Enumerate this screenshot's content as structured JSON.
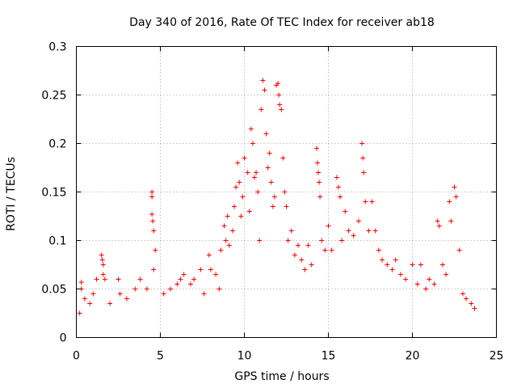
{
  "chart_data": {
    "type": "scatter",
    "title": "Day 340 of 2016, Rate Of TEC Index for receiver ab18",
    "xlabel": "GPS time / hours",
    "ylabel": "ROTI / TECUs",
    "xlim": [
      0,
      25
    ],
    "ylim": [
      0,
      0.3
    ],
    "xticks": [
      "0",
      "5",
      "10",
      "15",
      "20",
      "25"
    ],
    "yticks": [
      "0",
      "0.05",
      "0.1",
      "0.15",
      "0.2",
      "0.25",
      "0.3"
    ],
    "grid": true,
    "marker": "plus",
    "color": "#ff0000",
    "series": [
      {
        "points": [
          [
            0.2,
            0.025
          ],
          [
            0.3,
            0.05
          ],
          [
            0.3,
            0.057
          ],
          [
            0.5,
            0.04
          ],
          [
            0.8,
            0.035
          ],
          [
            1.0,
            0.045
          ],
          [
            1.2,
            0.06
          ],
          [
            1.5,
            0.085
          ],
          [
            1.55,
            0.08
          ],
          [
            1.6,
            0.075
          ],
          [
            1.6,
            0.065
          ],
          [
            1.7,
            0.06
          ],
          [
            2.0,
            0.035
          ],
          [
            2.5,
            0.06
          ],
          [
            2.6,
            0.045
          ],
          [
            3.0,
            0.04
          ],
          [
            3.5,
            0.05
          ],
          [
            3.8,
            0.06
          ],
          [
            4.2,
            0.05
          ],
          [
            4.5,
            0.15
          ],
          [
            4.5,
            0.145
          ],
          [
            4.5,
            0.127
          ],
          [
            4.55,
            0.12
          ],
          [
            4.6,
            0.11
          ],
          [
            4.7,
            0.09
          ],
          [
            4.6,
            0.07
          ],
          [
            5.2,
            0.045
          ],
          [
            5.6,
            0.05
          ],
          [
            6.0,
            0.055
          ],
          [
            6.2,
            0.06
          ],
          [
            6.4,
            0.065
          ],
          [
            6.8,
            0.055
          ],
          [
            7.0,
            0.06
          ],
          [
            7.4,
            0.07
          ],
          [
            7.6,
            0.045
          ],
          [
            7.9,
            0.085
          ],
          [
            8.0,
            0.07
          ],
          [
            8.3,
            0.065
          ],
          [
            8.5,
            0.05
          ],
          [
            8.6,
            0.09
          ],
          [
            8.8,
            0.115
          ],
          [
            8.9,
            0.1
          ],
          [
            9.0,
            0.125
          ],
          [
            9.1,
            0.095
          ],
          [
            9.3,
            0.11
          ],
          [
            9.4,
            0.135
          ],
          [
            9.5,
            0.155
          ],
          [
            9.6,
            0.18
          ],
          [
            9.7,
            0.16
          ],
          [
            9.8,
            0.125
          ],
          [
            9.9,
            0.145
          ],
          [
            10.0,
            0.185
          ],
          [
            10.2,
            0.17
          ],
          [
            10.3,
            0.13
          ],
          [
            10.4,
            0.215
          ],
          [
            10.5,
            0.2
          ],
          [
            10.6,
            0.165
          ],
          [
            10.7,
            0.17
          ],
          [
            10.8,
            0.15
          ],
          [
            10.9,
            0.1
          ],
          [
            11.0,
            0.235
          ],
          [
            11.1,
            0.265
          ],
          [
            11.2,
            0.255
          ],
          [
            11.3,
            0.21
          ],
          [
            11.4,
            0.175
          ],
          [
            11.5,
            0.19
          ],
          [
            11.6,
            0.16
          ],
          [
            11.7,
            0.135
          ],
          [
            11.8,
            0.145
          ],
          [
            11.9,
            0.26
          ],
          [
            12.0,
            0.262
          ],
          [
            12.05,
            0.25
          ],
          [
            12.1,
            0.24
          ],
          [
            12.2,
            0.235
          ],
          [
            12.3,
            0.185
          ],
          [
            12.4,
            0.15
          ],
          [
            12.5,
            0.135
          ],
          [
            12.6,
            0.1
          ],
          [
            12.8,
            0.11
          ],
          [
            13.0,
            0.085
          ],
          [
            13.2,
            0.095
          ],
          [
            13.4,
            0.08
          ],
          [
            13.6,
            0.07
          ],
          [
            13.8,
            0.095
          ],
          [
            14.0,
            0.075
          ],
          [
            14.3,
            0.195
          ],
          [
            14.35,
            0.18
          ],
          [
            14.4,
            0.17
          ],
          [
            14.45,
            0.16
          ],
          [
            14.5,
            0.145
          ],
          [
            14.6,
            0.1
          ],
          [
            14.8,
            0.09
          ],
          [
            15.0,
            0.115
          ],
          [
            15.2,
            0.09
          ],
          [
            15.5,
            0.165
          ],
          [
            15.6,
            0.155
          ],
          [
            15.7,
            0.145
          ],
          [
            15.8,
            0.1
          ],
          [
            16.0,
            0.13
          ],
          [
            16.2,
            0.11
          ],
          [
            16.5,
            0.105
          ],
          [
            16.8,
            0.12
          ],
          [
            17.0,
            0.2
          ],
          [
            17.05,
            0.185
          ],
          [
            17.1,
            0.17
          ],
          [
            17.2,
            0.14
          ],
          [
            17.4,
            0.11
          ],
          [
            17.6,
            0.14
          ],
          [
            17.8,
            0.11
          ],
          [
            18.0,
            0.09
          ],
          [
            18.2,
            0.08
          ],
          [
            18.5,
            0.075
          ],
          [
            18.8,
            0.07
          ],
          [
            19.0,
            0.08
          ],
          [
            19.3,
            0.065
          ],
          [
            19.6,
            0.06
          ],
          [
            20.0,
            0.075
          ],
          [
            20.3,
            0.055
          ],
          [
            20.5,
            0.075
          ],
          [
            20.8,
            0.05
          ],
          [
            21.0,
            0.06
          ],
          [
            21.3,
            0.055
          ],
          [
            21.5,
            0.12
          ],
          [
            21.6,
            0.115
          ],
          [
            21.8,
            0.075
          ],
          [
            22.0,
            0.065
          ],
          [
            22.2,
            0.14
          ],
          [
            22.3,
            0.12
          ],
          [
            22.5,
            0.155
          ],
          [
            22.6,
            0.145
          ],
          [
            22.8,
            0.09
          ],
          [
            23.0,
            0.045
          ],
          [
            23.2,
            0.04
          ],
          [
            23.5,
            0.035
          ],
          [
            23.7,
            0.03
          ]
        ]
      }
    ]
  }
}
